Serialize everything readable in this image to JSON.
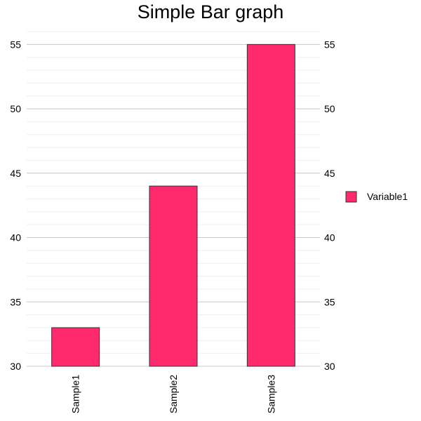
{
  "chart_data": {
    "type": "bar",
    "title": "Simple Bar graph",
    "categories": [
      "Sample1",
      "Sample2",
      "Sample3"
    ],
    "series": [
      {
        "name": "Variable1",
        "values": [
          33,
          44,
          55
        ]
      }
    ],
    "ylim": [
      30,
      56
    ],
    "major_ticks": [
      30,
      35,
      40,
      45,
      50,
      55
    ],
    "minor_step": 1,
    "xlabel": "",
    "ylabel": "",
    "grid": true,
    "legend": "right",
    "bar_color": "#FF2A6D",
    "bar_stroke": "#333333",
    "major_grid_color": "#c8c8c8",
    "minor_grid_color": "#efefef"
  }
}
